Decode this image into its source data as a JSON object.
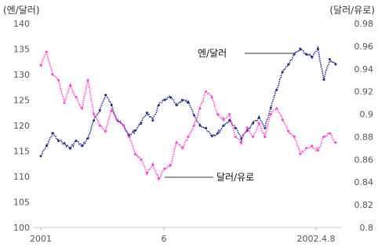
{
  "chart_data": {
    "type": "line",
    "left_axis_unit": "(엔/달러)",
    "right_axis_unit": "(달러/유로)",
    "x_tick_labels": [
      "2001",
      "6",
      "2002.4.8"
    ],
    "left_axis": {
      "ylim": [
        100,
        140
      ],
      "ticks": [
        "140",
        "135",
        "130",
        "125",
        "120",
        "115",
        "110",
        "105",
        "100"
      ]
    },
    "right_axis": {
      "ylim": [
        0.8,
        0.98
      ],
      "ticks": [
        "0.98",
        "0.96",
        "0.94",
        "0.92",
        "0.9",
        "0.88",
        "0.86",
        "0.84",
        "0.82",
        "0.8"
      ]
    },
    "grid": false,
    "series": [
      {
        "name": "엔/달러",
        "axis": "left",
        "color": "#1f2a8c",
        "x": [
          0,
          2,
          4,
          6,
          8,
          10,
          12,
          14,
          16,
          18,
          20,
          22,
          24,
          26,
          28,
          30,
          32,
          34,
          36,
          38,
          40,
          42,
          44,
          46,
          48,
          50,
          52,
          54,
          56,
          58,
          60,
          62,
          64,
          66,
          68,
          70,
          72,
          74,
          76,
          78,
          80,
          82,
          84,
          86,
          88,
          90,
          92,
          94,
          96,
          98,
          100
        ],
        "values": [
          114,
          116,
          118.5,
          117,
          116.5,
          115.5,
          117,
          116,
          117.5,
          121,
          123,
          126,
          124,
          121,
          120,
          118,
          119,
          120.5,
          122.5,
          121,
          124,
          125,
          125.5,
          124,
          125,
          124.5,
          122,
          120,
          119.5,
          118,
          118.5,
          120,
          121,
          119.5,
          117.5,
          119,
          120.5,
          121.5,
          119.5,
          123.5,
          127,
          130.5,
          132,
          134,
          135,
          134,
          133.5,
          135,
          129,
          133,
          132
        ]
      },
      {
        "name": "달러/유로",
        "axis": "right",
        "color": "#ff3fd8",
        "x": [
          0,
          2,
          4,
          6,
          8,
          10,
          12,
          14,
          16,
          18,
          20,
          22,
          24,
          26,
          28,
          30,
          32,
          34,
          36,
          38,
          40,
          42,
          44,
          46,
          48,
          50,
          52,
          54,
          56,
          58,
          60,
          62,
          64,
          66,
          68,
          70,
          72,
          74,
          76,
          78,
          80,
          82,
          84,
          86,
          88,
          90,
          92,
          94,
          96,
          98,
          100
        ],
        "values": [
          0.943,
          0.955,
          0.935,
          0.93,
          0.91,
          0.925,
          0.915,
          0.905,
          0.93,
          0.9,
          0.89,
          0.885,
          0.903,
          0.895,
          0.89,
          0.88,
          0.865,
          0.86,
          0.848,
          0.855,
          0.843,
          0.852,
          0.855,
          0.875,
          0.87,
          0.88,
          0.89,
          0.905,
          0.92,
          0.915,
          0.9,
          0.895,
          0.9,
          0.88,
          0.875,
          0.888,
          0.88,
          0.892,
          0.88,
          0.9,
          0.905,
          0.895,
          0.885,
          0.88,
          0.865,
          0.87,
          0.872,
          0.868,
          0.88,
          0.883,
          0.875
        ]
      }
    ],
    "annotations": [
      {
        "text": "엔/달러",
        "series": 0
      },
      {
        "text": "달러/유로",
        "series": 1
      }
    ]
  }
}
